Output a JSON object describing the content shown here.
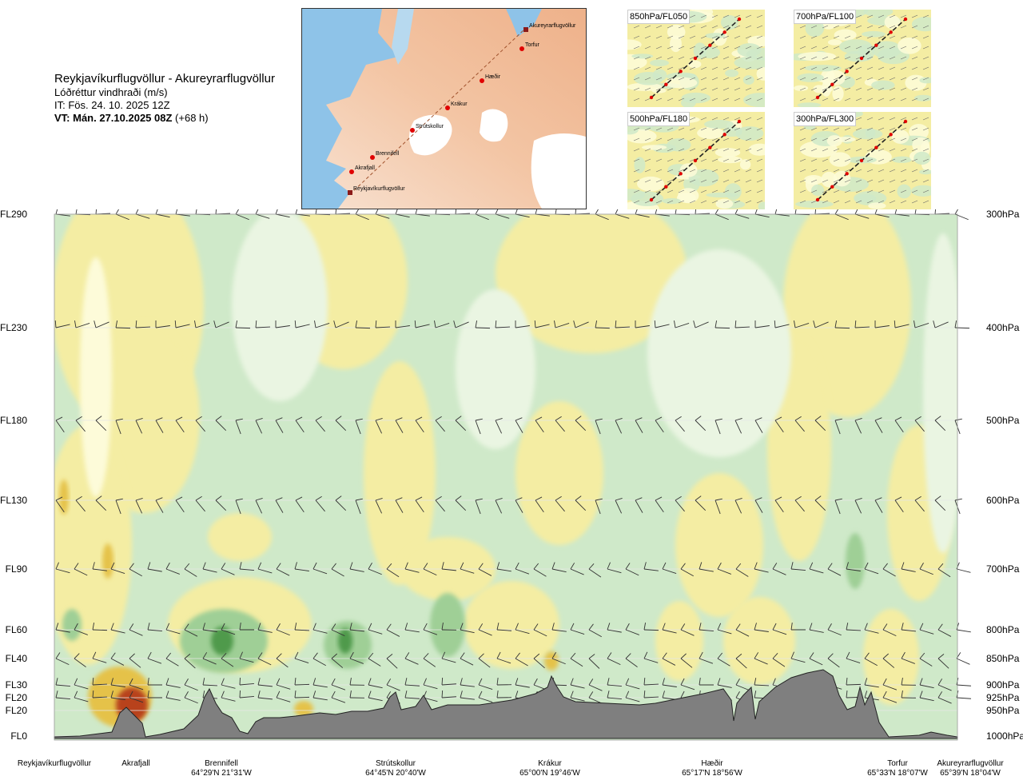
{
  "header": {
    "route": "Reykjavíkurflugvöllur - Akureyrarflugvöllur",
    "variable": "Lóðréttur vindhraði (m/s)",
    "issue": "IT: Fös. 24. 10. 2025 12Z",
    "valid_bold": "VT: Mán. 27.10.2025 08Z",
    "valid_offset": "(+68 h)"
  },
  "map": {
    "points": [
      {
        "name": "Akureyrarflugvöllur"
      },
      {
        "name": "Torfur"
      },
      {
        "name": "Hæðir"
      },
      {
        "name": "Krákur"
      },
      {
        "name": "Strútskollur"
      },
      {
        "name": "Brennifell"
      },
      {
        "name": "Akrafjall"
      },
      {
        "name": "Reykjavíkurflugvöllur"
      }
    ]
  },
  "panels": [
    {
      "label": "850hPa/FL050"
    },
    {
      "label": "700hPa/FL100"
    },
    {
      "label": "500hPa/FL180"
    },
    {
      "label": "300hPa/FL300"
    }
  ],
  "bottom_labels": [
    {
      "name": "Reykjavíkurflugvöllur",
      "coord": ""
    },
    {
      "name": "Akrafjall",
      "coord": ""
    },
    {
      "name": "Brennifell",
      "coord": "64°29'N 21°31'W"
    },
    {
      "name": "Strútskollur",
      "coord": "64°45'N 20°40'W"
    },
    {
      "name": "Krákur",
      "coord": "65°00'N 19°46'W"
    },
    {
      "name": "Hæðir",
      "coord": "65°17'N 18°56'W"
    },
    {
      "name": "Torfur",
      "coord": "65°33'N 18°07'W"
    },
    {
      "name": "Akureyrarflugvöllur",
      "coord": "65°39'N 18°04'W"
    }
  ],
  "colors": {
    "upward_light": "#fdfbd9",
    "upward": "#f4eda3",
    "upward_strong": "#e5c24a",
    "upward_max": "#b8431c",
    "downward_light": "#eaf5e2",
    "downward": "#cfe9c9",
    "downward_strong": "#9fcf96",
    "downward_max": "#4f9a4c",
    "terrain": "#7f7f7f"
  },
  "chart_data": {
    "type": "heatmap",
    "levels": [
      {
        "fl": "FL290",
        "hpa": "300hPa"
      },
      {
        "fl": "FL230",
        "hpa": "400hPa"
      },
      {
        "fl": "FL180",
        "hpa": "500hPa"
      },
      {
        "fl": "FL130",
        "hpa": "600hPa"
      },
      {
        "fl": "FL90",
        "hpa": "700hPa"
      },
      {
        "fl": "FL60",
        "hpa": "800hPa"
      },
      {
        "fl": "FL40",
        "hpa": "850hPa"
      },
      {
        "fl": "FL30",
        "hpa": "900hPa"
      },
      {
        "fl": "FL20",
        "hpa": "925hPa"
      },
      {
        "fl": "FL20",
        "hpa": "950hPa"
      },
      {
        "fl": "FL0",
        "hpa": "1000hPa"
      }
    ]
  }
}
